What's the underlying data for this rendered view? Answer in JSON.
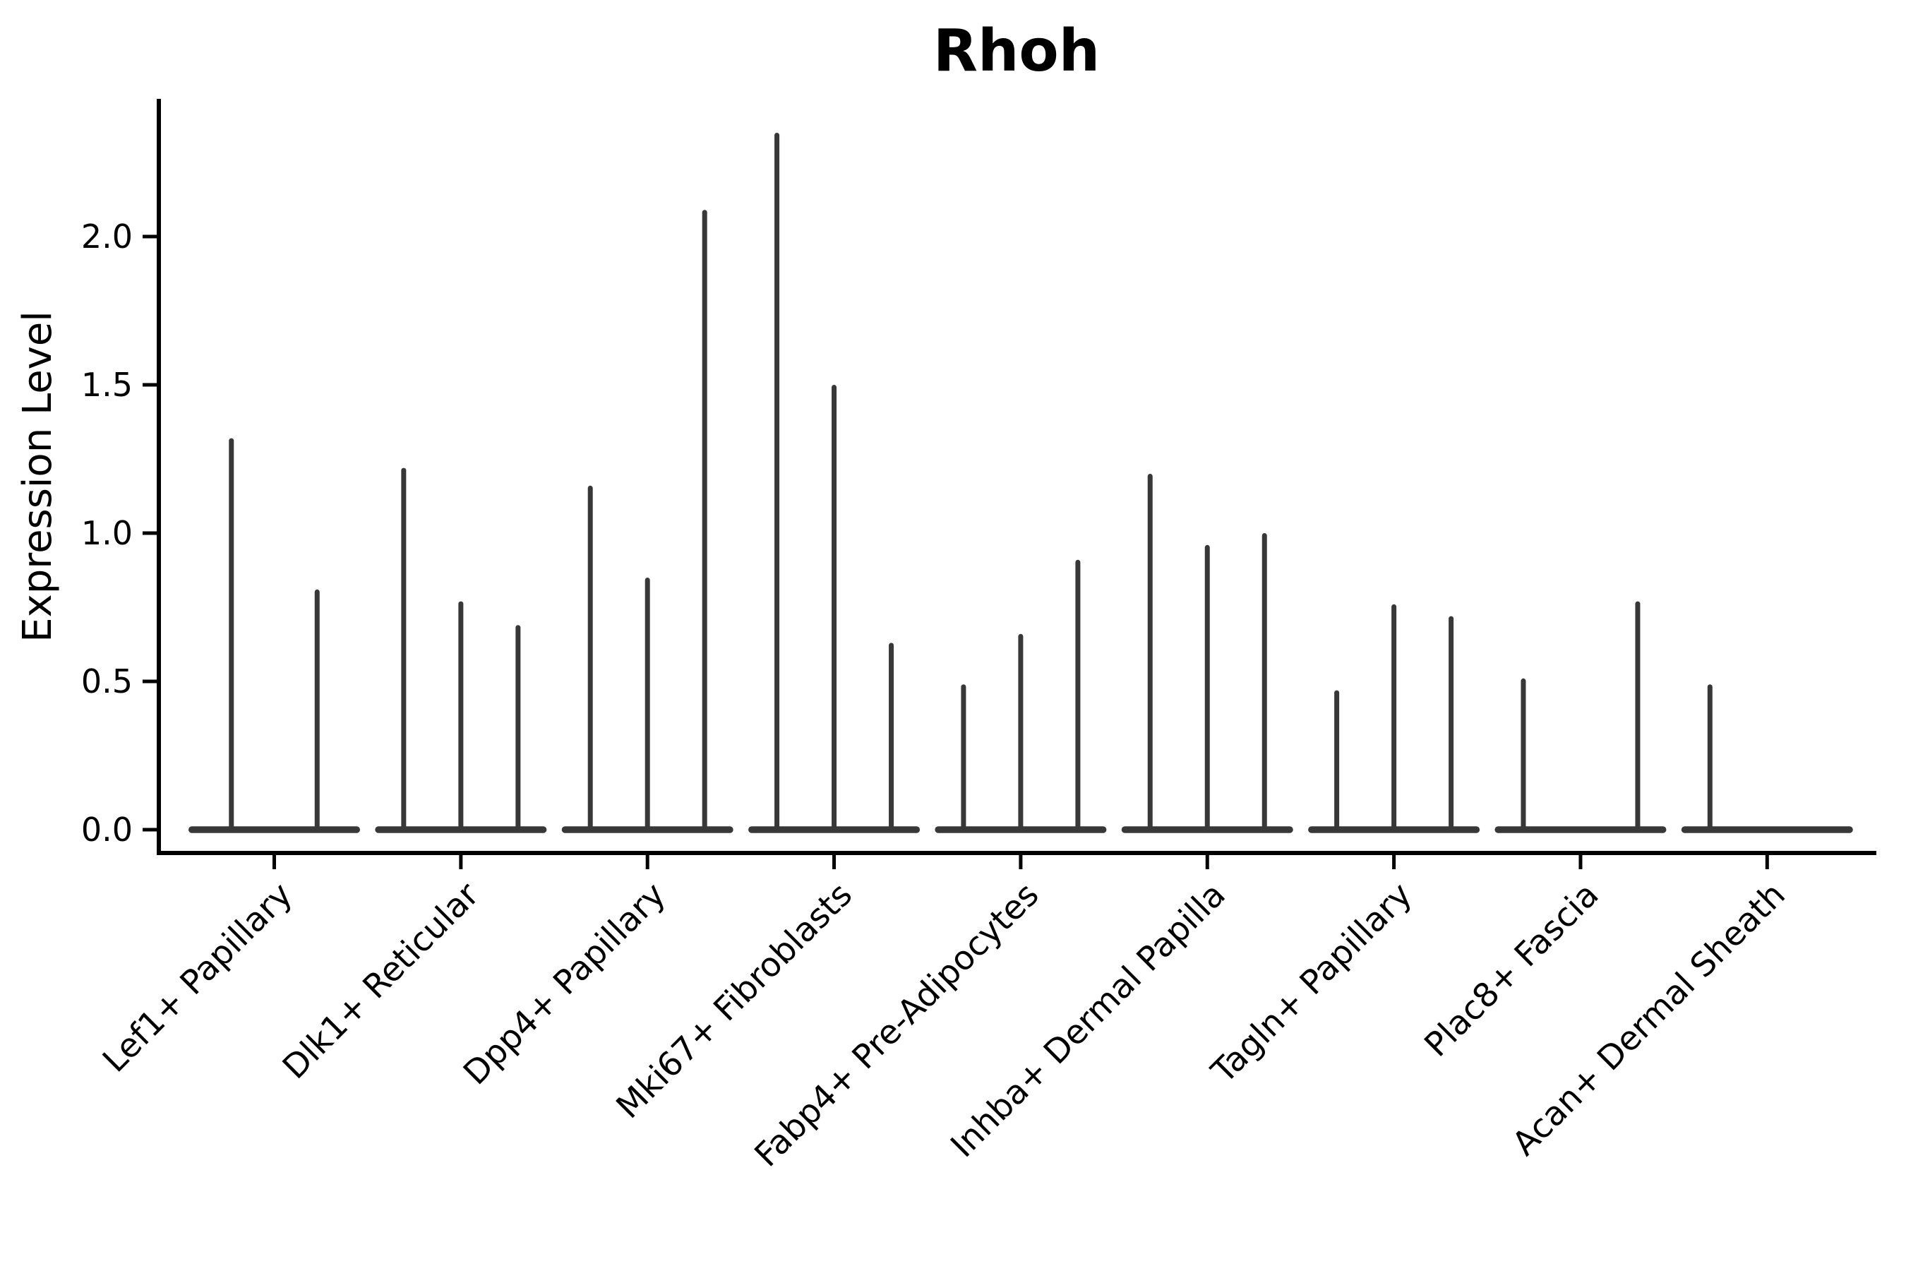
{
  "chart_data": {
    "type": "violin",
    "title": "Rhoh",
    "xlabel": "",
    "ylabel": "Expression Level",
    "yticks": [
      0.0,
      0.5,
      1.0,
      1.5,
      2.0
    ],
    "ytick_labels": [
      "0.0",
      "0.5",
      "1.0",
      "1.5",
      "2.0"
    ],
    "ylim": [
      -0.08,
      2.46
    ],
    "grid": false,
    "legend": "none",
    "description": "Single-gene expression violin plot; each category shows thin violins (wide base at 0 expression with a narrow spike up to the maximum expression value). Zero values in violin_maxima indicate flat violins with no spike.",
    "categories": [
      "Lef1+ Papillary",
      "Dlk1+ Reticular",
      "Dpp4+ Papillary",
      "Mki67+ Fibroblasts",
      "Fabp4+ Pre-Adipocytes",
      "Inhba+ Dermal Papilla",
      "Tagln+ Papillary",
      "Plac8+ Fascia",
      "Acan+ Dermal Sheath"
    ],
    "series": [
      {
        "name": "Lef1+ Papillary",
        "violin_maxima": [
          1.32,
          0.81
        ]
      },
      {
        "name": "Dlk1+ Reticular",
        "violin_maxima": [
          1.22,
          0.77,
          0.69
        ]
      },
      {
        "name": "Dpp4+ Papillary",
        "violin_maxima": [
          1.16,
          0.85,
          2.09
        ]
      },
      {
        "name": "Mki67+ Fibroblasts",
        "violin_maxima": [
          2.35,
          1.5,
          0.63
        ]
      },
      {
        "name": "Fabp4+ Pre-Adipocytes",
        "violin_maxima": [
          0.49,
          0.66,
          0.91
        ]
      },
      {
        "name": "Inhba+ Dermal Papilla",
        "violin_maxima": [
          1.2,
          0.96,
          1.0
        ]
      },
      {
        "name": "Tagln+ Papillary",
        "violin_maxima": [
          0.47,
          0.76,
          0.72
        ]
      },
      {
        "name": "Plac8+ Fascia",
        "violin_maxima": [
          0.51,
          0.0,
          0.77
        ]
      },
      {
        "name": "Acan+ Dermal Sheath",
        "violin_maxima": [
          0.49,
          0.0,
          0.0
        ]
      }
    ],
    "colors": {
      "violin": "#383838",
      "axis": "#000000",
      "text": "#000000",
      "background": "#ffffff"
    }
  }
}
